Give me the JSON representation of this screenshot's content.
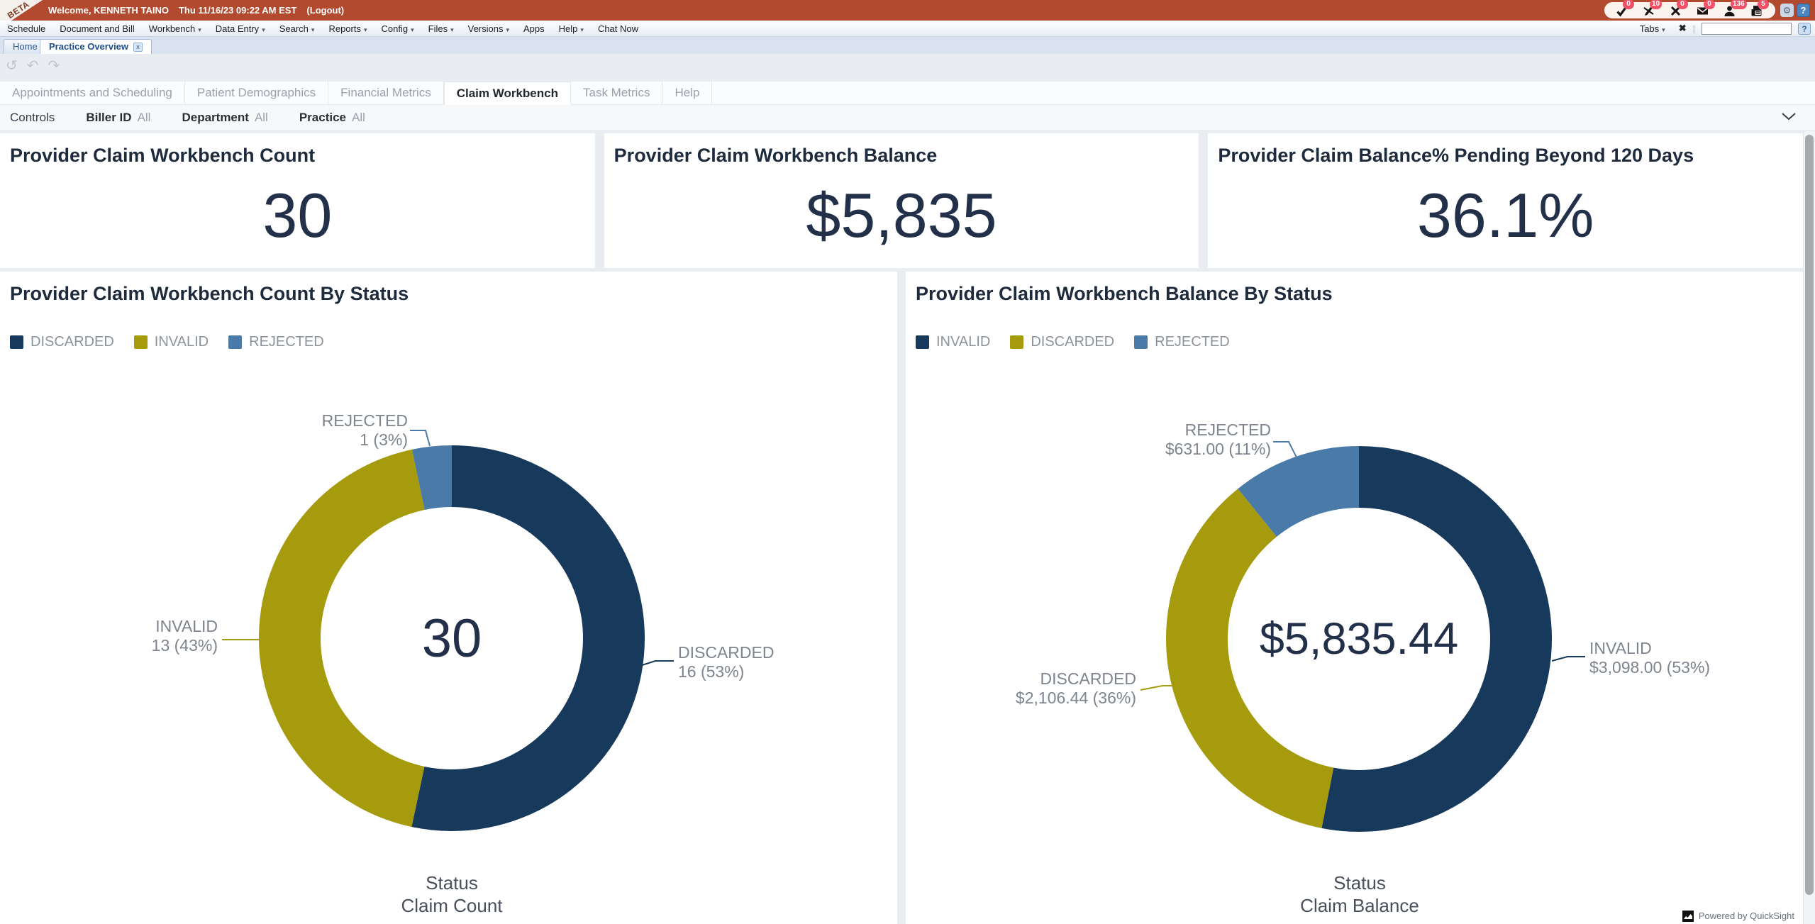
{
  "topbar": {
    "beta": "BETA",
    "welcome": "Welcome, KENNETH TAINO",
    "datetime": "Thu 11/16/23 09:22 AM EST",
    "logout": "(Logout)",
    "badges": [
      {
        "icon": "check-icon",
        "count": "0"
      },
      {
        "icon": "signature-slash-icon",
        "count": "10"
      },
      {
        "icon": "x-mark-icon",
        "count": "0"
      },
      {
        "icon": "mail-icon",
        "count": "0"
      },
      {
        "icon": "person-icon",
        "count": "136"
      },
      {
        "icon": "fax-icon",
        "count": "5"
      }
    ],
    "gear_glyph": "⚙",
    "help_glyph": "?"
  },
  "menubar": {
    "items": [
      {
        "label": "Schedule"
      },
      {
        "label": "Document and Bill"
      },
      {
        "label": "Workbench"
      },
      {
        "label": "Data Entry"
      },
      {
        "label": "Search"
      },
      {
        "label": "Reports"
      },
      {
        "label": "Config"
      },
      {
        "label": "Files"
      },
      {
        "label": "Versions"
      },
      {
        "label": "Apps"
      },
      {
        "label": "Help"
      },
      {
        "label": "Chat Now"
      }
    ],
    "tabs_button": "Tabs",
    "close_all_glyph": "✖",
    "search_value": "",
    "help_glyph": "?"
  },
  "tabstrip": {
    "home": "Home",
    "active": "Practice Overview",
    "close_glyph": "x"
  },
  "undo_toolbar": {
    "refresh": "↺",
    "undo": "↶",
    "redo": "↷"
  },
  "subtabs": {
    "items": [
      "Appointments and Scheduling",
      "Patient Demographics",
      "Financial Metrics",
      "Claim Workbench",
      "Task Metrics",
      "Help"
    ]
  },
  "controls": {
    "label": "Controls",
    "filters": [
      {
        "name": "Biller ID",
        "value": "All"
      },
      {
        "name": "Department",
        "value": "All"
      },
      {
        "name": "Practice",
        "value": "All"
      }
    ]
  },
  "kpis": [
    {
      "title": "Provider Claim Workbench Count",
      "value": "30"
    },
    {
      "title": "Provider Claim Workbench Balance",
      "value": "$5,835"
    },
    {
      "title": "Provider Claim Balance% Pending Beyond 120 Days",
      "value": "36.1%"
    }
  ],
  "chart_data": [
    {
      "type": "pie",
      "subtype": "donut",
      "title": "Provider Claim Workbench Count By Status",
      "center_value": "30",
      "total": 30,
      "xlabel": "Status",
      "value_label": "Claim Count",
      "legend_position": "top-left",
      "segments": [
        {
          "name": "DISCARDED",
          "value": 16,
          "pct": 53,
          "display": "16 (53%)",
          "color": "#173A5C"
        },
        {
          "name": "INVALID",
          "value": 13,
          "pct": 43,
          "display": "13 (43%)",
          "color": "#A59B0D"
        },
        {
          "name": "REJECTED",
          "value": 1,
          "pct": 3,
          "display": "1 (3%)",
          "color": "#4A7BA8"
        }
      ]
    },
    {
      "type": "pie",
      "subtype": "donut",
      "title": "Provider Claim Workbench Balance By Status",
      "center_value": "$5,835.44",
      "total": 5835.44,
      "xlabel": "Status",
      "value_label": "Claim Balance",
      "legend_position": "top-left",
      "segments": [
        {
          "name": "INVALID",
          "value": 3098.0,
          "pct": 53,
          "display": "$3,098.00 (53%)",
          "color": "#173A5C"
        },
        {
          "name": "DISCARDED",
          "value": 2106.44,
          "pct": 36,
          "display": "$2,106.44 (36%)",
          "color": "#A59B0D"
        },
        {
          "name": "REJECTED",
          "value": 631.0,
          "pct": 11,
          "display": "$631.00 (11%)",
          "color": "#4A7BA8"
        }
      ]
    }
  ],
  "footer": {
    "quicksight": "Powered by QuickSight"
  },
  "colors": {
    "topbar_red": "#B14A2F",
    "badge_red": "#EE5168",
    "navy": "#173A5C",
    "olive": "#A59B0D",
    "steel": "#4A7BA8"
  }
}
